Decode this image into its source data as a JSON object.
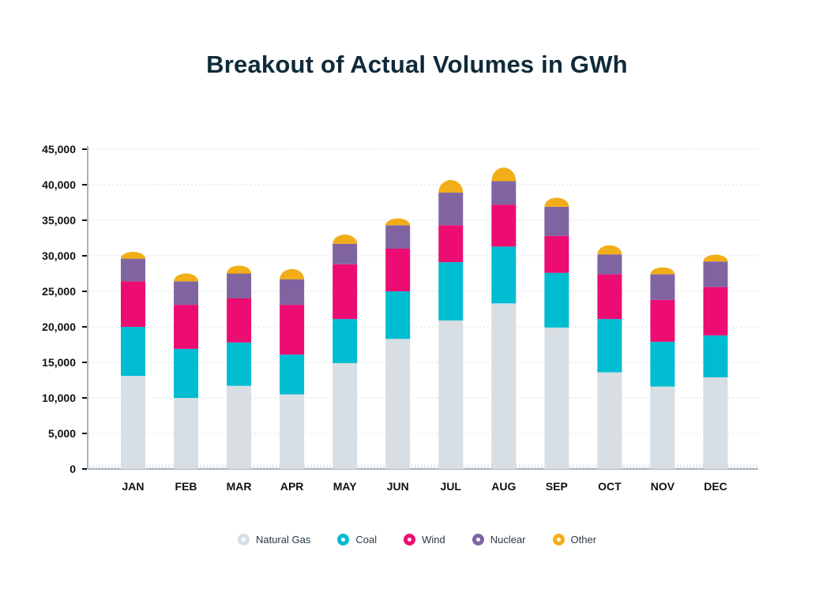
{
  "chart_data": {
    "type": "bar",
    "stacked": true,
    "title": "Breakout of Actual Volumes in GWh",
    "xlabel": "",
    "ylabel": "",
    "ylim": [
      0,
      45000
    ],
    "yticks": [
      0,
      5000,
      10000,
      15000,
      20000,
      25000,
      30000,
      35000,
      40000,
      45000
    ],
    "ytick_labels": [
      "0",
      "5,000",
      "10,000",
      "15,000",
      "20,000",
      "25,000",
      "30,000",
      "35,000",
      "40,000",
      "45,000"
    ],
    "grid": true,
    "legend_position": "bottom",
    "categories": [
      "JAN",
      "FEB",
      "MAR",
      "APR",
      "MAY",
      "JUN",
      "JUL",
      "AUG",
      "SEP",
      "OCT",
      "NOV",
      "DEC"
    ],
    "series": [
      {
        "name": "Natural Gas",
        "color": "#d7dee4",
        "values": [
          13100,
          10000,
          11700,
          10500,
          14900,
          18300,
          20900,
          23300,
          19900,
          13600,
          11600,
          12900
        ]
      },
      {
        "name": "Coal",
        "color": "#00bcd1",
        "values": [
          6900,
          6900,
          6100,
          5600,
          6200,
          6700,
          8200,
          8000,
          7700,
          7500,
          6300,
          5900
        ]
      },
      {
        "name": "Wind",
        "color": "#ec0c72",
        "values": [
          6400,
          6200,
          6200,
          7000,
          7700,
          6000,
          5200,
          5900,
          5200,
          6300,
          5900,
          6800
        ]
      },
      {
        "name": "Nuclear",
        "color": "#8064a2",
        "values": [
          3200,
          3300,
          3500,
          3600,
          2900,
          3300,
          4600,
          3300,
          4100,
          2800,
          3600,
          3600
        ]
      },
      {
        "name": "Other",
        "color": "#f2ae18",
        "values": [
          600,
          700,
          700,
          900,
          800,
          600,
          1100,
          1200,
          800,
          800,
          600,
          600
        ]
      }
    ]
  }
}
